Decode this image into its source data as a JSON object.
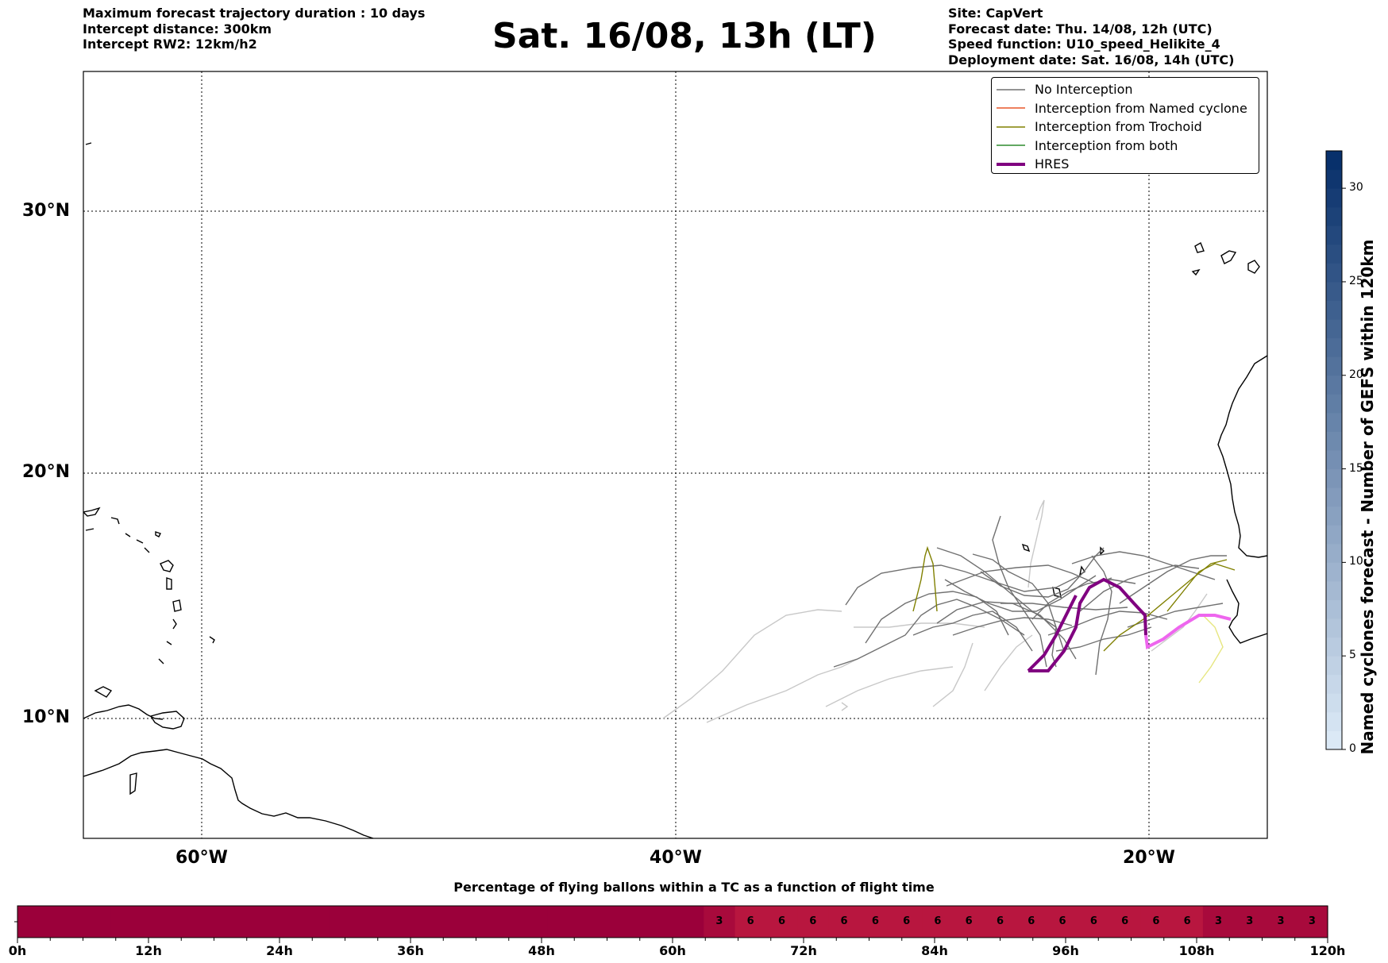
{
  "header": {
    "left_lines": [
      "Maximum forecast trajectory duration : 10 days",
      "Intercept distance: 300km",
      "Intercept RW2: 12km/h2"
    ],
    "title": "Sat. 16/08, 13h (LT)",
    "right_lines": [
      "Site: CapVert",
      "Forecast date: Thu. 14/08, 12h (UTC)",
      "Speed function: U10_speed_Helikite_4",
      "Deployment date: Sat. 16/08, 14h (UTC)"
    ]
  },
  "map": {
    "lon_range": [
      -65,
      -15
    ],
    "lat_range": [
      5,
      36.3
    ],
    "lat_labels": [
      "30°N",
      "20°N",
      "10°N"
    ],
    "lon_labels": [
      "60°W",
      "40°W",
      "20°W"
    ],
    "gridlines": "dotted"
  },
  "legend": {
    "items": [
      {
        "label": "No Interception",
        "color": "#707070"
      },
      {
        "label": "Interception from Named cyclone",
        "color": "#e8562a"
      },
      {
        "label": "Interception from Trochoid",
        "color": "#808000"
      },
      {
        "label": "Interception from both",
        "color": "#2e8b2e"
      },
      {
        "label": "HRES",
        "color": "#800080"
      }
    ]
  },
  "colorbar": {
    "label": "Named cyclones forecast - Number of GEFS within 120km",
    "ticks": [
      "0",
      "5",
      "10",
      "15",
      "20",
      "25",
      "30"
    ],
    "range": [
      0,
      32
    ],
    "color_low": "#dbe9f6",
    "color_high": "#08306b"
  },
  "timeline": {
    "title": "Percentage of flying ballons within a TC as a function of flight time",
    "tick_labels": [
      "0h",
      "12h",
      "24h",
      "36h",
      "48h",
      "60h",
      "72h",
      "84h",
      "96h",
      "108h",
      "120h"
    ],
    "cell_hours": 3,
    "values": [
      "",
      "",
      "",
      "",
      "",
      "",
      "",
      "",
      "",
      "",
      "",
      "",
      "",
      "",
      "",
      "",
      "",
      "",
      "",
      "",
      "",
      "",
      "3",
      "6",
      "6",
      "6",
      "6",
      "6",
      "6",
      "6",
      "6",
      "6",
      "6",
      "6",
      "6",
      "6",
      "6",
      "6",
      "3",
      "3",
      "3",
      "3"
    ],
    "color_base": "#9b003a",
    "color_3": "#a80a3c",
    "color_6": "#b8163f"
  }
}
